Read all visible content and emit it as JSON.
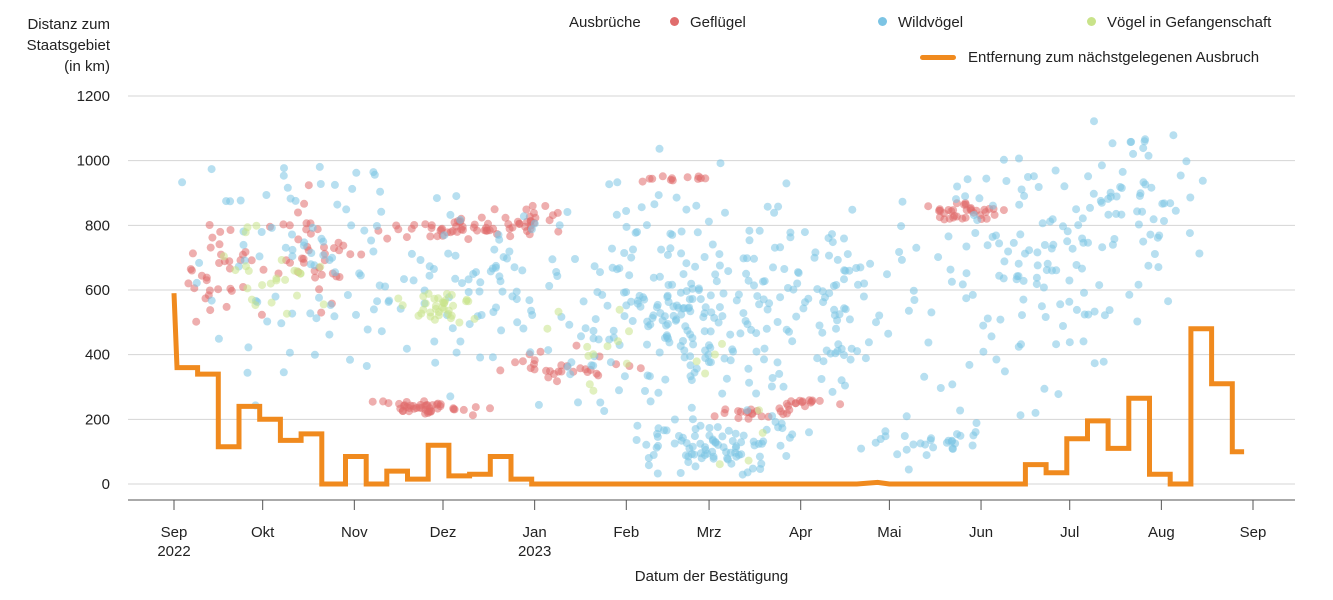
{
  "chart_data": {
    "type": "scatter",
    "ylabel_lines": [
      "Distanz zum",
      "Staatsgebiet",
      "(in km)"
    ],
    "xlabel": "Datum der Bestätigung",
    "legend_title": "Ausbrüche",
    "ylim": [
      0,
      1200
    ],
    "yticks": [
      0,
      200,
      400,
      600,
      800,
      1000,
      1200
    ],
    "x_range": [
      "2022-09-01",
      "2023-09-01"
    ],
    "xticks": [
      {
        "date": "2022-09-01",
        "label": "Sep",
        "sublabel": "2022"
      },
      {
        "date": "2022-10-01",
        "label": "Okt"
      },
      {
        "date": "2022-11-01",
        "label": "Nov"
      },
      {
        "date": "2022-12-01",
        "label": "Dez"
      },
      {
        "date": "2023-01-01",
        "label": "Jan",
        "sublabel": "2023"
      },
      {
        "date": "2023-02-01",
        "label": "Feb"
      },
      {
        "date": "2023-03-01",
        "label": "Mrz"
      },
      {
        "date": "2023-04-01",
        "label": "Apr"
      },
      {
        "date": "2023-05-01",
        "label": "Mai"
      },
      {
        "date": "2023-06-01",
        "label": "Jun"
      },
      {
        "date": "2023-07-01",
        "label": "Jul"
      },
      {
        "date": "2023-08-01",
        "label": "Aug"
      },
      {
        "date": "2023-09-01",
        "label": "Sep"
      }
    ],
    "grid": true,
    "legend_position": "top",
    "series": [
      {
        "name": "Geflügel",
        "color": "#e06c6c",
        "clusters": [
          {
            "date": "2022-09-20",
            "y": 650,
            "n": 40,
            "spread_days": 18,
            "spread_y": 160
          },
          {
            "date": "2022-10-20",
            "y": 720,
            "n": 35,
            "spread_days": 15,
            "spread_y": 150
          },
          {
            "date": "2022-11-25",
            "y": 235,
            "n": 45,
            "spread_days": 18,
            "spread_y": 22
          },
          {
            "date": "2022-12-05",
            "y": 790,
            "n": 45,
            "spread_days": 22,
            "spread_y": 35
          },
          {
            "date": "2022-12-28",
            "y": 820,
            "n": 25,
            "spread_days": 15,
            "spread_y": 40
          },
          {
            "date": "2023-01-10",
            "y": 370,
            "n": 30,
            "spread_days": 20,
            "spread_y": 55
          },
          {
            "date": "2023-02-15",
            "y": 945,
            "n": 12,
            "spread_days": 10,
            "spread_y": 10
          },
          {
            "date": "2023-03-15",
            "y": 220,
            "n": 20,
            "spread_days": 15,
            "spread_y": 20
          },
          {
            "date": "2023-04-03",
            "y": 250,
            "n": 15,
            "spread_days": 10,
            "spread_y": 12
          },
          {
            "date": "2023-05-25",
            "y": 845,
            "n": 35,
            "spread_days": 14,
            "spread_y": 30
          }
        ]
      },
      {
        "name": "Wildvögel",
        "color": "#7cc4e4",
        "clusters": [
          {
            "date": "2022-10-15",
            "y": 650,
            "n": 90,
            "spread_days": 40,
            "spread_y": 300
          },
          {
            "date": "2022-12-15",
            "y": 600,
            "n": 70,
            "spread_days": 30,
            "spread_y": 260
          },
          {
            "date": "2023-02-20",
            "y": 550,
            "n": 220,
            "spread_days": 35,
            "spread_y": 340
          },
          {
            "date": "2023-03-05",
            "y": 120,
            "n": 90,
            "spread_days": 30,
            "spread_y": 80
          },
          {
            "date": "2023-04-10",
            "y": 550,
            "n": 90,
            "spread_days": 25,
            "spread_y": 260
          },
          {
            "date": "2023-06-15",
            "y": 650,
            "n": 130,
            "spread_days": 35,
            "spread_y": 330
          },
          {
            "date": "2023-07-25",
            "y": 900,
            "n": 50,
            "spread_days": 20,
            "spread_y": 200
          },
          {
            "date": "2023-05-15",
            "y": 150,
            "n": 30,
            "spread_days": 20,
            "spread_y": 80
          }
        ]
      },
      {
        "name": "Vögel in Gefangenschaft",
        "color": "#c9e38a",
        "clusters": [
          {
            "date": "2022-10-05",
            "y": 650,
            "n": 25,
            "spread_days": 20,
            "spread_y": 150
          },
          {
            "date": "2022-12-01",
            "y": 550,
            "n": 35,
            "spread_days": 12,
            "spread_y": 45
          },
          {
            "date": "2023-01-15",
            "y": 450,
            "n": 12,
            "spread_days": 20,
            "spread_y": 150
          },
          {
            "date": "2023-03-10",
            "y": 300,
            "n": 8,
            "spread_days": 20,
            "spread_y": 200
          }
        ]
      }
    ],
    "line": {
      "name": "Entfernung zum nächstgelegenen Ausbruch",
      "color": "#f08a1e",
      "points": [
        [
          "2022-09-01",
          590
        ],
        [
          "2022-09-02",
          360
        ],
        [
          "2022-09-09",
          360
        ],
        [
          "2022-09-09",
          340
        ],
        [
          "2022-09-16",
          340
        ],
        [
          "2022-09-16",
          115
        ],
        [
          "2022-09-23",
          115
        ],
        [
          "2022-09-23",
          240
        ],
        [
          "2022-09-30",
          240
        ],
        [
          "2022-09-30",
          200
        ],
        [
          "2022-10-07",
          200
        ],
        [
          "2022-10-07",
          135
        ],
        [
          "2022-10-14",
          135
        ],
        [
          "2022-10-14",
          155
        ],
        [
          "2022-10-21",
          155
        ],
        [
          "2022-10-21",
          0
        ],
        [
          "2022-10-29",
          0
        ],
        [
          "2022-10-29",
          85
        ],
        [
          "2022-11-05",
          85
        ],
        [
          "2022-11-05",
          0
        ],
        [
          "2022-11-12",
          0
        ],
        [
          "2022-11-12",
          40
        ],
        [
          "2022-11-19",
          40
        ],
        [
          "2022-11-19",
          15
        ],
        [
          "2022-11-26",
          15
        ],
        [
          "2022-11-26",
          120
        ],
        [
          "2022-12-03",
          120
        ],
        [
          "2022-12-03",
          25
        ],
        [
          "2022-12-10",
          25
        ],
        [
          "2022-12-10",
          30
        ],
        [
          "2022-12-17",
          30
        ],
        [
          "2022-12-17",
          85
        ],
        [
          "2022-12-24",
          85
        ],
        [
          "2022-12-24",
          15
        ],
        [
          "2022-12-31",
          15
        ],
        [
          "2022-12-31",
          0
        ],
        [
          "2023-04-20",
          0
        ],
        [
          "2023-04-27",
          5
        ],
        [
          "2023-05-01",
          0
        ],
        [
          "2023-06-16",
          0
        ],
        [
          "2023-06-16",
          60
        ],
        [
          "2023-06-23",
          60
        ],
        [
          "2023-06-23",
          35
        ],
        [
          "2023-06-30",
          35
        ],
        [
          "2023-06-30",
          140
        ],
        [
          "2023-07-07",
          140
        ],
        [
          "2023-07-07",
          195
        ],
        [
          "2023-07-14",
          195
        ],
        [
          "2023-07-14",
          110
        ],
        [
          "2023-07-21",
          110
        ],
        [
          "2023-07-21",
          265
        ],
        [
          "2023-07-28",
          265
        ],
        [
          "2023-07-28",
          30
        ],
        [
          "2023-08-04",
          30
        ],
        [
          "2023-08-04",
          0
        ],
        [
          "2023-08-11",
          0
        ],
        [
          "2023-08-11",
          480
        ],
        [
          "2023-08-18",
          480
        ],
        [
          "2023-08-18",
          310
        ],
        [
          "2023-08-25",
          310
        ],
        [
          "2023-08-25",
          100
        ],
        [
          "2023-08-29",
          100
        ]
      ]
    }
  }
}
